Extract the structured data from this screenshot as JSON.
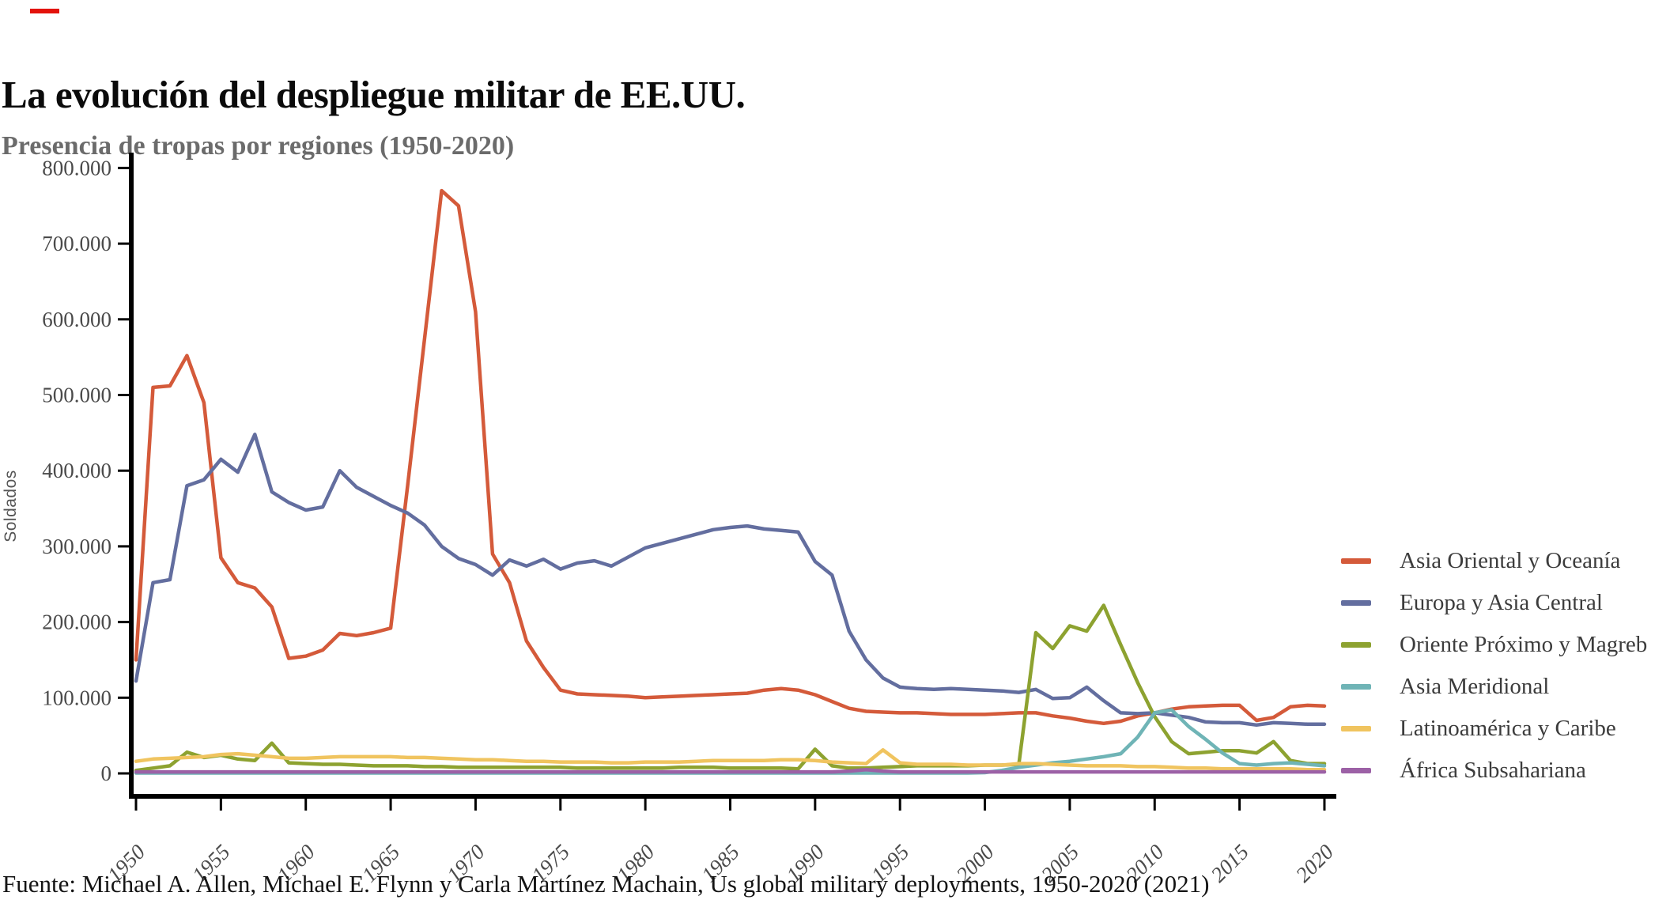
{
  "brand": {
    "color": "#e3120b"
  },
  "header": {
    "title": "La evolución del despliegue militar de EE.UU.",
    "subtitle": "Presencia de tropas por regiones (1950-2020)"
  },
  "footer": {
    "source": "Fuente: Michael A. Allen, Michael E. Flynn y Carla Martínez Machain, Us global military deployments, 1950-2020 (2021)"
  },
  "chart_data": {
    "type": "line",
    "title": "La evolución del despliegue militar de EE.UU.",
    "subtitle": "Presencia de tropas por regiones (1950-2020)",
    "ylabel": "Soldados",
    "xlabel": "",
    "grid": false,
    "legend_position": "right",
    "x_start": 1950,
    "x_end": 2020,
    "x_tick_labels": [
      "1950",
      "1955",
      "1960",
      "1965",
      "1970",
      "1975",
      "1980",
      "1985",
      "1990",
      "1995",
      "2000",
      "2005",
      "2010",
      "2015",
      "2020"
    ],
    "y_tick_values": [
      0,
      100000,
      200000,
      300000,
      400000,
      500000,
      600000,
      700000,
      800000
    ],
    "y_tick_labels": [
      "0",
      "100.000",
      "200.000",
      "300.000",
      "400.000",
      "500.000",
      "600.000",
      "700.000",
      "800.000"
    ],
    "ylim": [
      0,
      800000
    ],
    "axis_color": "#000000",
    "tick_text_color": "#4a4a4a",
    "series": [
      {
        "name": "Asia Oriental y Oceanía",
        "color": "#d45a3a",
        "values": [
          150000,
          510000,
          512000,
          552000,
          490000,
          285000,
          252000,
          245000,
          220000,
          152000,
          155000,
          163000,
          185000,
          182000,
          186000,
          192000,
          380000,
          575000,
          770000,
          750000,
          610000,
          290000,
          252000,
          175000,
          140000,
          110000,
          105000,
          104000,
          103000,
          102000,
          100000,
          101000,
          102000,
          103000,
          104000,
          105000,
          106000,
          110000,
          112000,
          110000,
          104000,
          95000,
          86000,
          82000,
          81000,
          80000,
          80000,
          79000,
          78000,
          78000,
          78000,
          79000,
          80000,
          80000,
          76000,
          73000,
          69000,
          66000,
          69000,
          76000,
          80000,
          85000,
          88000,
          89000,
          90000,
          90000,
          70000,
          74000,
          88000,
          90000,
          89000
        ]
      },
      {
        "name": "Europa y Asia Central",
        "color": "#636e9f",
        "values": [
          122000,
          252000,
          256000,
          380000,
          388000,
          415000,
          398000,
          448000,
          372000,
          358000,
          348000,
          352000,
          400000,
          378000,
          366000,
          354000,
          344000,
          328000,
          300000,
          284000,
          276000,
          262000,
          282000,
          274000,
          283000,
          270000,
          278000,
          281000,
          274000,
          286000,
          298000,
          304000,
          310000,
          316000,
          322000,
          325000,
          327000,
          323000,
          321000,
          319000,
          280000,
          262000,
          188000,
          150000,
          126000,
          114000,
          112000,
          111000,
          112000,
          111000,
          110000,
          109000,
          107000,
          111000,
          99000,
          100000,
          114000,
          96000,
          80000,
          79000,
          80000,
          77000,
          74000,
          68000,
          67000,
          67000,
          64000,
          67000,
          66000,
          65000,
          65000
        ]
      },
      {
        "name": "Oriente Próximo y Magreb",
        "color": "#8da230",
        "values": [
          4000,
          7000,
          10000,
          28000,
          21000,
          24000,
          19000,
          17000,
          40000,
          14000,
          13000,
          12000,
          12000,
          11000,
          10000,
          10000,
          10000,
          9000,
          9000,
          8000,
          8000,
          8000,
          8000,
          8000,
          8000,
          8000,
          7000,
          7000,
          7000,
          7000,
          7000,
          7000,
          8000,
          8000,
          8000,
          7000,
          7000,
          7000,
          7000,
          6000,
          32000,
          10000,
          7000,
          7000,
          8000,
          9000,
          10000,
          10000,
          10000,
          10000,
          11000,
          11000,
          12000,
          186000,
          165000,
          195000,
          188000,
          222000,
          170000,
          120000,
          75000,
          42000,
          26000,
          28000,
          30000,
          30000,
          27000,
          42000,
          17000,
          13000,
          13000
        ]
      },
      {
        "name": "Asia Meridional",
        "color": "#6fb4b6",
        "values": [
          500,
          500,
          500,
          500,
          500,
          500,
          500,
          500,
          500,
          500,
          500,
          500,
          500,
          500,
          500,
          500,
          500,
          500,
          500,
          500,
          500,
          500,
          500,
          500,
          500,
          500,
          500,
          500,
          500,
          500,
          500,
          500,
          500,
          500,
          500,
          500,
          500,
          500,
          500,
          500,
          500,
          500,
          500,
          500,
          500,
          500,
          500,
          500,
          500,
          500,
          1000,
          4000,
          8000,
          11000,
          14000,
          16000,
          19000,
          22000,
          26000,
          48000,
          80000,
          84000,
          62000,
          45000,
          27000,
          13000,
          11000,
          13000,
          14000,
          12000,
          10000
        ]
      },
      {
        "name": "Latinoamérica y Caribe",
        "color": "#f0c45f",
        "values": [
          16000,
          19000,
          20000,
          21000,
          22000,
          25000,
          26000,
          24000,
          22000,
          20000,
          20000,
          21000,
          22000,
          22000,
          22000,
          22000,
          21000,
          21000,
          20000,
          19000,
          18000,
          18000,
          17000,
          16000,
          16000,
          15000,
          15000,
          15000,
          14000,
          14000,
          15000,
          15000,
          15000,
          16000,
          17000,
          17000,
          17000,
          17000,
          18000,
          18000,
          17000,
          15000,
          14000,
          13000,
          31000,
          14000,
          12000,
          12000,
          12000,
          11000,
          11000,
          11000,
          13000,
          13000,
          12000,
          11000,
          10000,
          10000,
          10000,
          9000,
          9000,
          8000,
          7000,
          7000,
          6000,
          6000,
          6000,
          6000,
          6000,
          5000,
          5000
        ]
      },
      {
        "name": "África Subsahariana",
        "color": "#9c61a6",
        "values": [
          2000,
          2000,
          2000,
          2000,
          2000,
          2000,
          2000,
          2000,
          2000,
          2000,
          2000,
          2000,
          2000,
          2000,
          2000,
          2000,
          2000,
          2000,
          2000,
          2000,
          2000,
          2000,
          2000,
          2000,
          2000,
          2000,
          2000,
          2000,
          2000,
          2000,
          2000,
          2000,
          2000,
          2000,
          2000,
          2000,
          2000,
          2000,
          2000,
          2000,
          2000,
          2000,
          3000,
          5000,
          3000,
          2000,
          2000,
          2000,
          2000,
          2000,
          2000,
          2000,
          2000,
          2000,
          2000,
          2000,
          2000,
          2000,
          2000,
          2000,
          2000,
          2000,
          2000,
          2000,
          2000,
          2000,
          2000,
          2000,
          2000,
          2000,
          2000
        ]
      }
    ]
  }
}
